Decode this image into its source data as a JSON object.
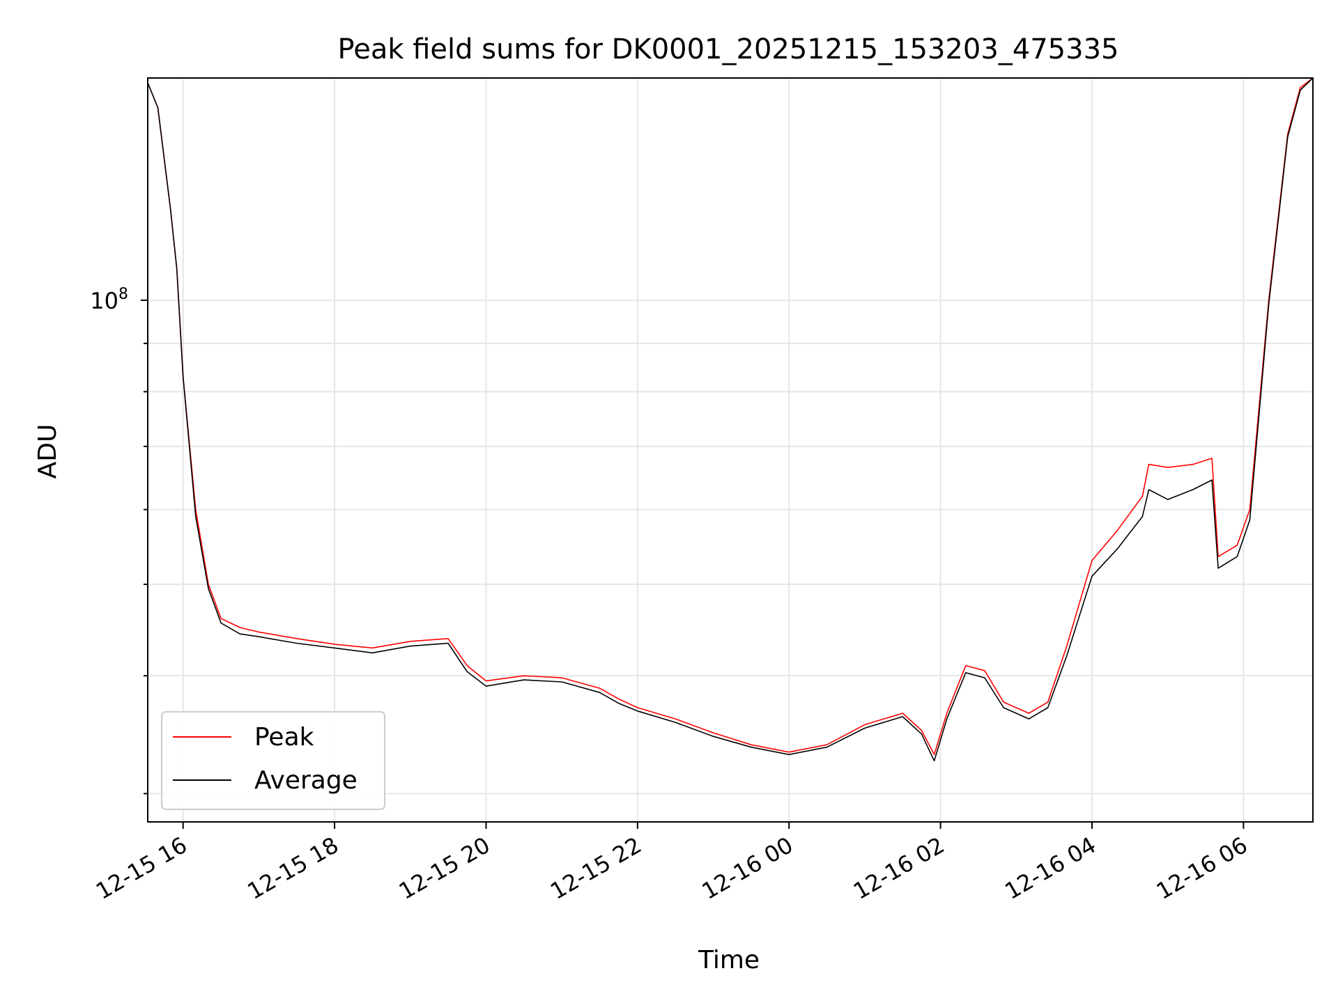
{
  "chart_data": {
    "type": "line",
    "title": "Peak field sums for DK0001_20251215_153203_475335",
    "xlabel": "Time",
    "ylabel": "ADU",
    "yscale": "log",
    "grid": true,
    "legend_position": "lower-left",
    "xlim": [
      "2025-12-15 15:32",
      "2025-12-16 06:55"
    ],
    "ylim": [
      28000000,
      172000000
    ],
    "x_ticks": [
      "2025-12-15 16:00",
      "2025-12-15 18:00",
      "2025-12-15 20:00",
      "2025-12-15 22:00",
      "2025-12-16 00:00",
      "2025-12-16 02:00",
      "2025-12-16 04:00",
      "2025-12-16 06:00"
    ],
    "x_tick_labels": [
      "12-15 16",
      "12-15 18",
      "12-15 20",
      "12-15 22",
      "12-16 00",
      "12-16 02",
      "12-16 04",
      "12-16 06"
    ],
    "y_major_tick_label": "10^8",
    "y_major_tick_value": 100000000,
    "series": [
      {
        "name": "Peak",
        "color": "#ff0000",
        "x": [
          "2025-12-15 15:32",
          "2025-12-15 15:40",
          "2025-12-15 15:50",
          "2025-12-15 15:55",
          "2025-12-15 16:00",
          "2025-12-15 16:10",
          "2025-12-15 16:20",
          "2025-12-15 16:30",
          "2025-12-15 16:45",
          "2025-12-15 17:00",
          "2025-12-15 17:30",
          "2025-12-15 18:00",
          "2025-12-15 18:30",
          "2025-12-15 19:00",
          "2025-12-15 19:30",
          "2025-12-15 19:45",
          "2025-12-15 20:00",
          "2025-12-15 20:30",
          "2025-12-15 21:00",
          "2025-12-15 21:30",
          "2025-12-15 21:45",
          "2025-12-15 22:00",
          "2025-12-15 22:30",
          "2025-12-15 23:00",
          "2025-12-15 23:30",
          "2025-12-16 00:00",
          "2025-12-16 00:30",
          "2025-12-16 01:00",
          "2025-12-16 01:30",
          "2025-12-16 01:45",
          "2025-12-16 01:55",
          "2025-12-16 02:05",
          "2025-12-16 02:20",
          "2025-12-16 02:35",
          "2025-12-16 02:50",
          "2025-12-16 03:10",
          "2025-12-16 03:25",
          "2025-12-16 03:40",
          "2025-12-16 04:00",
          "2025-12-16 04:20",
          "2025-12-16 04:40",
          "2025-12-16 04:45",
          "2025-12-16 05:00",
          "2025-12-16 05:20",
          "2025-12-16 05:35",
          "2025-12-16 05:40",
          "2025-12-16 05:55",
          "2025-12-16 06:05",
          "2025-12-16 06:20",
          "2025-12-16 06:35",
          "2025-12-16 06:45",
          "2025-12-16 06:55"
        ],
        "y": [
          170000000,
          160000000,
          125000000,
          108000000,
          83000000,
          60000000,
          50000000,
          46000000,
          45000000,
          44500000,
          43800000,
          43200000,
          42800000,
          43500000,
          43800000,
          41000000,
          39500000,
          40000000,
          39800000,
          38800000,
          37800000,
          37000000,
          36000000,
          34800000,
          33800000,
          33200000,
          33800000,
          35500000,
          36500000,
          35000000,
          33000000,
          36500000,
          41000000,
          40500000,
          37500000,
          36500000,
          37500000,
          43000000,
          53000000,
          57000000,
          62000000,
          67000000,
          66500000,
          67000000,
          68000000,
          53500000,
          55000000,
          60000000,
          100000000,
          150000000,
          168000000,
          172000000
        ]
      },
      {
        "name": "Average",
        "color": "#000000",
        "x": [
          "2025-12-15 15:32",
          "2025-12-15 15:40",
          "2025-12-15 15:50",
          "2025-12-15 15:55",
          "2025-12-15 16:00",
          "2025-12-15 16:10",
          "2025-12-15 16:20",
          "2025-12-15 16:30",
          "2025-12-15 16:45",
          "2025-12-15 17:00",
          "2025-12-15 17:30",
          "2025-12-15 18:00",
          "2025-12-15 18:30",
          "2025-12-15 19:00",
          "2025-12-15 19:30",
          "2025-12-15 19:45",
          "2025-12-15 20:00",
          "2025-12-15 20:30",
          "2025-12-15 21:00",
          "2025-12-15 21:30",
          "2025-12-15 21:45",
          "2025-12-15 22:00",
          "2025-12-15 22:30",
          "2025-12-15 23:00",
          "2025-12-15 23:30",
          "2025-12-16 00:00",
          "2025-12-16 00:30",
          "2025-12-16 01:00",
          "2025-12-16 01:30",
          "2025-12-16 01:45",
          "2025-12-16 01:55",
          "2025-12-16 02:05",
          "2025-12-16 02:20",
          "2025-12-16 02:35",
          "2025-12-16 02:50",
          "2025-12-16 03:10",
          "2025-12-16 03:25",
          "2025-12-16 03:40",
          "2025-12-16 04:00",
          "2025-12-16 04:20",
          "2025-12-16 04:40",
          "2025-12-16 04:45",
          "2025-12-16 05:00",
          "2025-12-16 05:20",
          "2025-12-16 05:35",
          "2025-12-16 05:40",
          "2025-12-16 05:55",
          "2025-12-16 06:05",
          "2025-12-16 06:20",
          "2025-12-16 06:35",
          "2025-12-16 06:45",
          "2025-12-16 06:55"
        ],
        "y": [
          170000000,
          160000000,
          125000000,
          108000000,
          83000000,
          59000000,
          49500000,
          45500000,
          44300000,
          44000000,
          43300000,
          42800000,
          42300000,
          43000000,
          43300000,
          40400000,
          39000000,
          39600000,
          39400000,
          38400000,
          37400000,
          36700000,
          35700000,
          34500000,
          33600000,
          33000000,
          33600000,
          35200000,
          36200000,
          34700000,
          32500000,
          36000000,
          40300000,
          39800000,
          37000000,
          36000000,
          37000000,
          42000000,
          51000000,
          54500000,
          59000000,
          63000000,
          61500000,
          63000000,
          64500000,
          52000000,
          53500000,
          58500000,
          99000000,
          149000000,
          167000000,
          172000000
        ]
      }
    ]
  }
}
